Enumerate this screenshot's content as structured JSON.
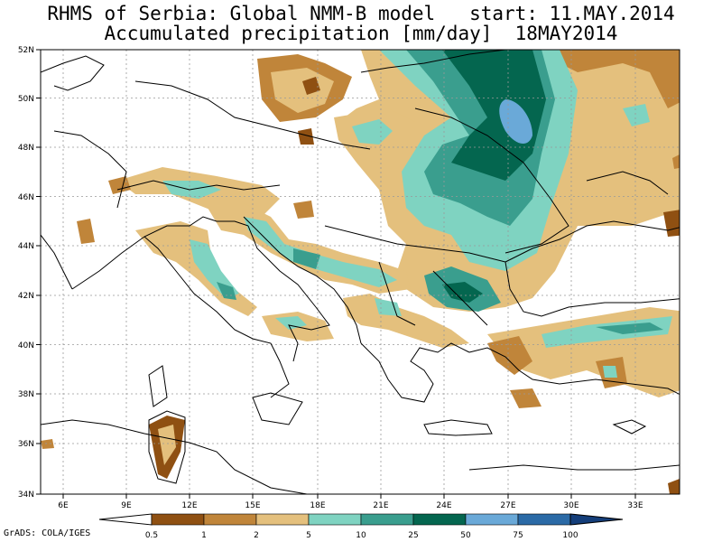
{
  "title_line1": "RHMS of Serbia: Global NMM-B model   start: 11.MAY.2014",
  "title_line2": "Accumulated precipitation [mm/day]  18MAY2014",
  "credit": "GrADS: COLA/IGES",
  "lat_labels": [
    "52N",
    "50N",
    "48N",
    "46N",
    "44N",
    "42N",
    "40N",
    "38N",
    "36N",
    "34N"
  ],
  "lon_labels": [
    "6E",
    "9E",
    "12E",
    "15E",
    "18E",
    "21E",
    "24E",
    "27E",
    "30E",
    "33E"
  ],
  "colorbar": {
    "thresholds": [
      "0.5",
      "1",
      "2",
      "5",
      "10",
      "25",
      "50",
      "75",
      "100"
    ],
    "colors": [
      "#8f5012",
      "#c0853a",
      "#e4c07d",
      "#7fd3c1",
      "#3a9e8e",
      "#04664f",
      "#6aa9d8",
      "#2b6aa6",
      "#143e7a"
    ]
  },
  "precip_colors": {
    "brown": "#8f5012",
    "lightbrown": "#c0853a",
    "tan": "#e4c07d",
    "aqua": "#7fd3c1",
    "teal": "#3a9e8e",
    "darkteal": "#04664f",
    "blue": "#6aa9d8"
  }
}
